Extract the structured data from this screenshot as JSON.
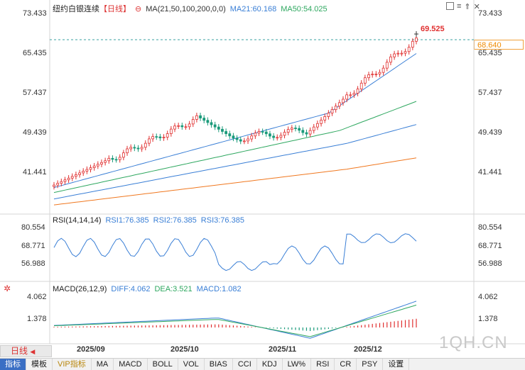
{
  "main_legend": {
    "title": "纽约白银连续",
    "period": "【日线】",
    "ma_params": "MA(21,50,100,200,0,0)",
    "ma21": "MA21:60.168",
    "ma50": "MA50:54.025"
  },
  "price_axis": [
    "73.433",
    "65.435",
    "57.437",
    "49.439",
    "41.441"
  ],
  "high_label": "69.525",
  "last_price": "68.640",
  "rsi_legend": {
    "params": "RSI(14,14,14)",
    "rsi1": "RSI1:76.385",
    "rsi2": "RSI2:76.385",
    "rsi3": "RSI3:76.385"
  },
  "rsi_axis": [
    "80.554",
    "68.771",
    "56.988"
  ],
  "macd_legend": {
    "params": "MACD(26,12,9)",
    "diff": "DIFF:4.062",
    "dea": "DEA:3.521",
    "macd": "MACD:1.082"
  },
  "macd_axis": [
    "4.062",
    "1.378"
  ],
  "date_axis": [
    "2025/09",
    "2025/10",
    "2025/11",
    "2025/12"
  ],
  "period_button": "日线",
  "watermark": "1QH.CN",
  "toolbar": [
    "指标",
    "模板",
    "VIP指标",
    "MA",
    "MACD",
    "BOLL",
    "VOL",
    "BIAS",
    "CCI",
    "KDJ",
    "LW%",
    "RSI",
    "CR",
    "PSY",
    "设置"
  ],
  "colors": {
    "up": "#e03030",
    "down": "#1a9a7a",
    "ma21": "#3a7fd6",
    "ma50": "#2fa860",
    "ma100": "#3a7fd6",
    "ma200": "#f07820",
    "rsi": "#3a7fd6",
    "macd_diff": "#3a7fd6",
    "macd_dea": "#2fa860"
  }
}
